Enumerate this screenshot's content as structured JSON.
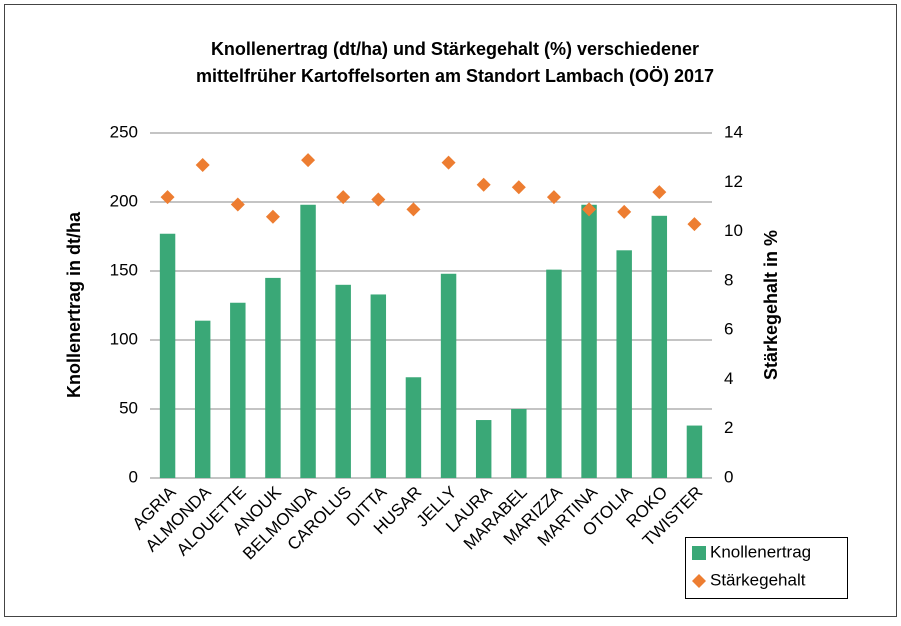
{
  "chart_data": {
    "type": "bar",
    "title": [
      "Knollenertrag (dt/ha) und Stärkegehalt (%) verschiedener",
      "mittelfrüher Kartoffelsorten am Standort Lambach (OÖ) 2017"
    ],
    "ylabel": "Knollenertrag in dt/ha",
    "y2label": "Stärkegehalt in %",
    "categories": [
      "AGRIA",
      "ALMONDA",
      "ALOUETTE",
      "ANOUK",
      "BELMONDA",
      "CAROLUS",
      "DITTA",
      "HUSAR",
      "JELLY",
      "LAURA",
      "MARABEL",
      "MARIZZA",
      "MARTINA",
      "OTOLIA",
      "ROKO",
      "TWISTER"
    ],
    "series": [
      {
        "name": "Knollenertrag",
        "type": "bar",
        "color": "#3aa877",
        "values": [
          177,
          114,
          127,
          145,
          198,
          140,
          133,
          73,
          148,
          42,
          50,
          151,
          198,
          165,
          190,
          38
        ]
      },
      {
        "name": "Stärkegehalt",
        "type": "scatter",
        "axis": "y2",
        "color": "#ed7d31",
        "values": [
          11.4,
          12.7,
          11.1,
          10.6,
          12.9,
          11.4,
          11.3,
          10.9,
          12.8,
          11.9,
          11.8,
          11.4,
          10.9,
          10.8,
          11.6,
          10.3
        ]
      }
    ],
    "ylim": [
      0,
      250
    ],
    "yticks": [
      0,
      50,
      100,
      150,
      200,
      250
    ],
    "y2lim": [
      0,
      14
    ],
    "y2ticks": [
      0,
      2,
      4,
      6,
      8,
      10,
      12,
      14
    ],
    "grid": true,
    "legend": "bottom-right"
  }
}
